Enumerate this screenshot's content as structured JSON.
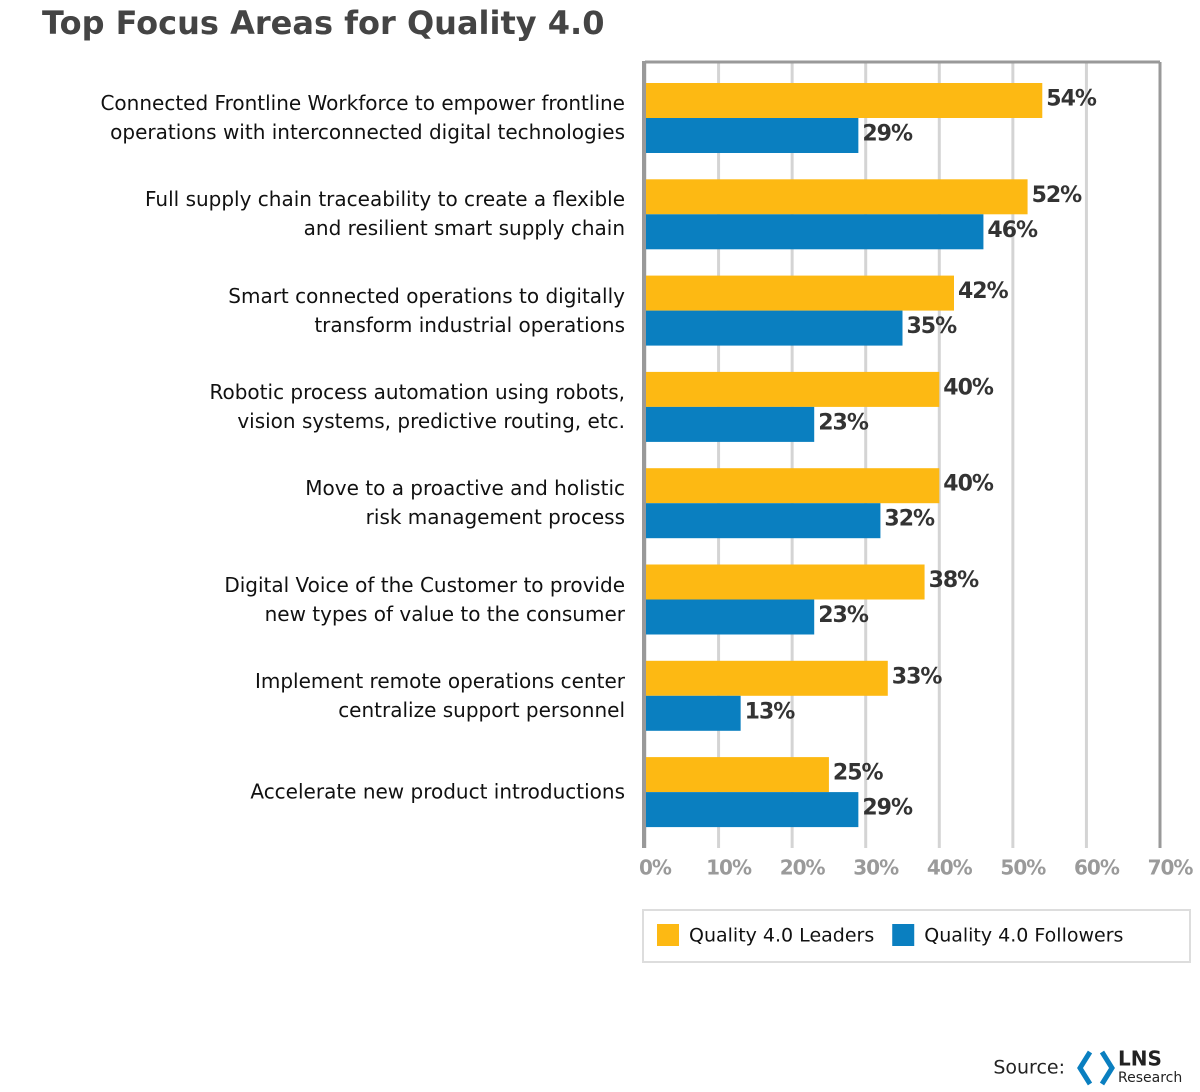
{
  "chart_data": {
    "type": "hbar",
    "title": "Top Focus Areas for Quality 4.0",
    "categories": [
      "Connected Frontline Workforce to empower frontline\noperations with interconnected digital technologies",
      "Full supply chain traceability to create a flexible\nand resilient smart supply chain",
      "Smart connected operations to digitally\ntransform industrial operations",
      "Robotic process automation using robots,\nvision systems, predictive routing, etc.",
      "Move to a proactive and holistic\nrisk management process",
      "Digital Voice of the Customer to provide\nnew types of value to the consumer",
      "Implement remote operations center\ncentralize support personnel",
      "Accelerate new product introductions"
    ],
    "series": [
      {
        "name": "Quality 4.0 Leaders",
        "color": "#fdb913",
        "values": [
          54,
          52,
          42,
          40,
          40,
          38,
          33,
          25
        ],
        "value_labels": [
          "54%",
          "52%",
          "42%",
          "40%",
          "40%",
          "38%",
          "33%",
          "25%"
        ]
      },
      {
        "name": "Quality 4.0 Followers",
        "color": "#0a7fc0",
        "values": [
          29,
          46,
          35,
          23,
          32,
          23,
          13,
          29
        ],
        "value_labels": [
          "29%",
          "46%",
          "35%",
          "23%",
          "32%",
          "23%",
          "13%",
          "29%"
        ]
      }
    ],
    "xlim": [
      0,
      70
    ],
    "xticks": [
      {
        "value": 0,
        "label": "0%"
      },
      {
        "value": 10,
        "label": "10%"
      },
      {
        "value": 20,
        "label": "20%"
      },
      {
        "value": 30,
        "label": "30%"
      },
      {
        "value": 40,
        "label": "40%"
      },
      {
        "value": 50,
        "label": "50%"
      },
      {
        "value": 60,
        "label": "60%"
      },
      {
        "value": 70,
        "label": "70%"
      }
    ],
    "grid": true,
    "legend": "bottom",
    "source": {
      "label": "Source:",
      "logo_top": "LNS",
      "logo_bottom": "Research"
    }
  }
}
